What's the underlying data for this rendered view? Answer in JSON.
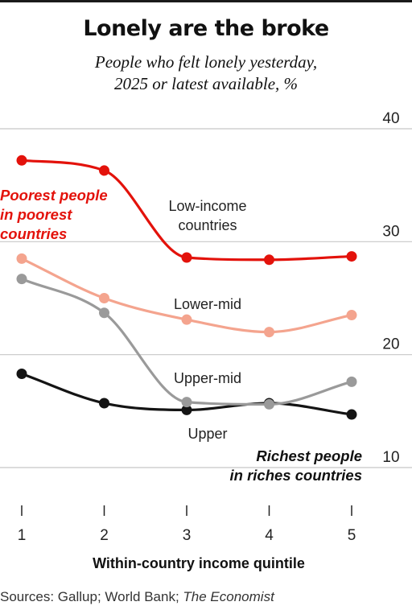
{
  "title": "Lonely are the broke",
  "subtitle_lines": [
    "People who felt lonely yesterday,",
    "2025 or latest available, %"
  ],
  "source": {
    "text": "Sources: Gallup; World Bank; ",
    "italic": "The Economist"
  },
  "colors": {
    "low": "#e3120b",
    "lower_mid": "#f4a48e",
    "upper_mid": "#9a9a9a",
    "upper": "#141414",
    "grid": "#c7c7c7"
  },
  "chart_data": {
    "type": "line",
    "x": [
      1,
      2,
      3,
      4,
      5
    ],
    "xticks": [
      "1",
      "2",
      "3",
      "4",
      "5"
    ],
    "xlabel": "Within-country income quintile",
    "ylabel": "",
    "ylim": [
      10,
      40
    ],
    "yticks": [
      10,
      20,
      30,
      40
    ],
    "grid": true,
    "series": [
      {
        "name": "Low-income countries",
        "color": "#e3120b",
        "values": [
          37.2,
          36.3,
          28.6,
          28.4,
          28.7
        ]
      },
      {
        "name": "Lower-mid",
        "color": "#f4a48e",
        "values": [
          28.5,
          25.0,
          23.1,
          22.0,
          23.5
        ]
      },
      {
        "name": "Upper-mid",
        "color": "#9a9a9a",
        "values": [
          26.7,
          23.7,
          15.8,
          15.6,
          17.6
        ]
      },
      {
        "name": "Upper",
        "color": "#141414",
        "values": [
          18.3,
          15.7,
          15.1,
          15.7,
          14.7
        ]
      }
    ],
    "annotations": {
      "poorest": [
        "Poorest people",
        "in poorest",
        "countries"
      ],
      "richest": [
        "Richest people",
        "in riches countries"
      ]
    }
  }
}
